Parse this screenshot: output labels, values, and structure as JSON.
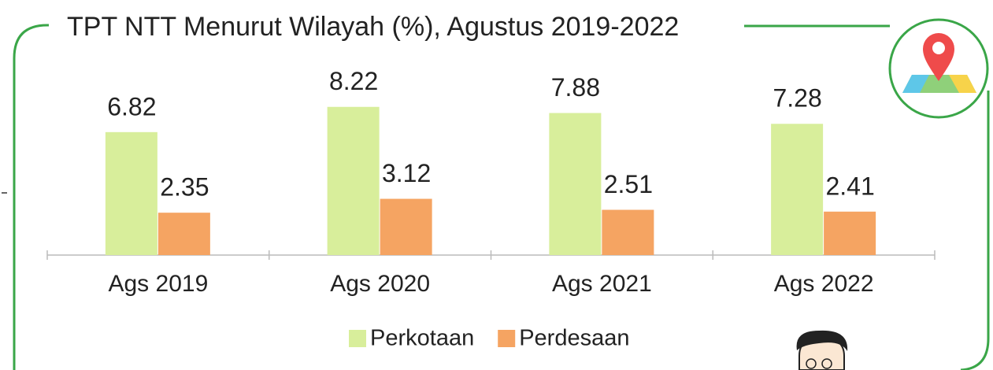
{
  "chart_data": {
    "type": "bar",
    "title": "TPT NTT Menurut Wilayah (%), Agustus 2019-2022",
    "categories": [
      "Ags 2019",
      "Ags 2020",
      "Ags 2021",
      "Ags 2022"
    ],
    "series": [
      {
        "name": "Perkotaan",
        "color": "#d8ee9b",
        "label_color": "#8a9b2e",
        "values": [
          6.82,
          8.22,
          7.88,
          7.28
        ]
      },
      {
        "name": "Perdesaan",
        "color": "#f5a462",
        "label_color": "#2f5364",
        "values": [
          2.35,
          3.12,
          2.51,
          2.41
        ]
      }
    ],
    "legend": "bottom"
  }
}
